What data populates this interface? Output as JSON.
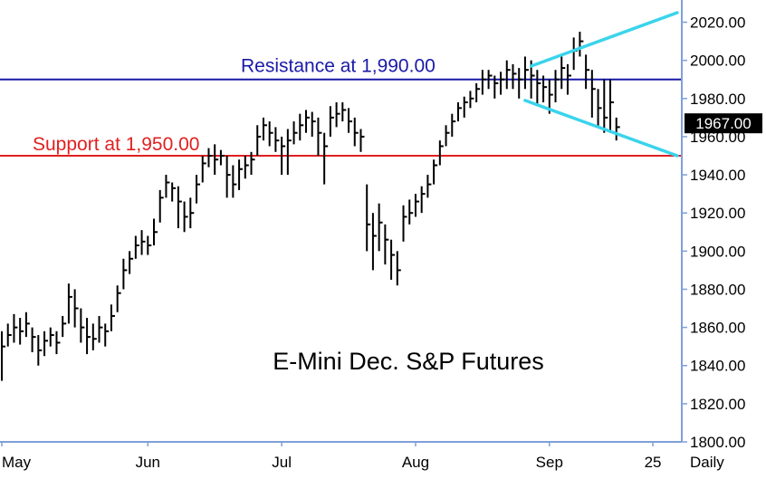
{
  "chart_data": {
    "type": "ohlc",
    "title": "E-Mini Dec. S&P Futures",
    "frequency_label": "Daily",
    "last_price_label": "1967.00",
    "ylim": [
      1800,
      2025
    ],
    "y_ticks": [
      "2020.00",
      "2000.00",
      "1980.00",
      "1960.00",
      "1940.00",
      "1920.00",
      "1900.00",
      "1880.00",
      "1860.00",
      "1840.00",
      "1820.00",
      "1800.00"
    ],
    "x_ticks": [
      {
        "label": "May",
        "bar": 0
      },
      {
        "label": "Jun",
        "bar": 24
      },
      {
        "label": "Jul",
        "bar": 46
      },
      {
        "label": "Aug",
        "bar": 68
      },
      {
        "label": "Sep",
        "bar": 90
      },
      {
        "label": "25",
        "bar": 107
      }
    ],
    "annotations": [
      {
        "label": "Resistance at 1,990.00",
        "value": 1990,
        "color": "#1a1aa8"
      },
      {
        "label": "Support at 1,950.00",
        "value": 1950,
        "color": "#e02020"
      }
    ],
    "trendlines": [
      {
        "from": [
          87,
          1997
        ],
        "to": [
          111,
          2025
        ],
        "color": "#3ad4ec"
      },
      {
        "from": [
          86,
          1979
        ],
        "to": [
          111,
          1950
        ],
        "color": "#3ad4ec"
      }
    ],
    "bars": [
      [
        1850,
        1832,
        1858
      ],
      [
        1856,
        1850,
        1862
      ],
      [
        1860,
        1852,
        1867
      ],
      [
        1858,
        1851,
        1865
      ],
      [
        1862,
        1855,
        1868
      ],
      [
        1855,
        1847,
        1860
      ],
      [
        1848,
        1840,
        1856
      ],
      [
        1853,
        1845,
        1858
      ],
      [
        1856,
        1850,
        1860
      ],
      [
        1852,
        1846,
        1858
      ],
      [
        1862,
        1855,
        1866
      ],
      [
        1876,
        1862,
        1883
      ],
      [
        1870,
        1860,
        1880
      ],
      [
        1860,
        1852,
        1870
      ],
      [
        1855,
        1846,
        1865
      ],
      [
        1854,
        1848,
        1862
      ],
      [
        1860,
        1852,
        1866
      ],
      [
        1858,
        1850,
        1862
      ],
      [
        1866,
        1858,
        1872
      ],
      [
        1878,
        1868,
        1882
      ],
      [
        1890,
        1880,
        1896
      ],
      [
        1896,
        1888,
        1900
      ],
      [
        1903,
        1896,
        1908
      ],
      [
        1905,
        1898,
        1911
      ],
      [
        1903,
        1898,
        1908
      ],
      [
        1910,
        1903,
        1917
      ],
      [
        1928,
        1915,
        1932
      ],
      [
        1936,
        1928,
        1940
      ],
      [
        1933,
        1926,
        1936
      ],
      [
        1926,
        1912,
        1934
      ],
      [
        1918,
        1910,
        1926
      ],
      [
        1920,
        1912,
        1928
      ],
      [
        1935,
        1925,
        1940
      ],
      [
        1946,
        1936,
        1950
      ],
      [
        1950,
        1944,
        1954
      ],
      [
        1948,
        1940,
        1956
      ],
      [
        1950,
        1945,
        1953
      ],
      [
        1940,
        1928,
        1950
      ],
      [
        1935,
        1928,
        1945
      ],
      [
        1943,
        1932,
        1948
      ],
      [
        1945,
        1938,
        1950
      ],
      [
        1948,
        1940,
        1952
      ],
      [
        1960,
        1950,
        1966
      ],
      [
        1966,
        1958,
        1970
      ],
      [
        1962,
        1955,
        1968
      ],
      [
        1958,
        1952,
        1965
      ],
      [
        1955,
        1940,
        1960
      ],
      [
        1958,
        1940,
        1964
      ],
      [
        1962,
        1956,
        1968
      ],
      [
        1966,
        1958,
        1972
      ],
      [
        1970,
        1962,
        1974
      ],
      [
        1968,
        1960,
        1973
      ],
      [
        1962,
        1950,
        1970
      ],
      [
        1955,
        1935,
        1962
      ],
      [
        1970,
        1960,
        1976
      ],
      [
        1972,
        1965,
        1978
      ],
      [
        1974,
        1968,
        1978
      ],
      [
        1968,
        1962,
        1975
      ],
      [
        1962,
        1955,
        1970
      ],
      [
        1960,
        1952,
        1964
      ],
      [
        1914,
        1900,
        1935
      ],
      [
        1908,
        1890,
        1920
      ],
      [
        1915,
        1900,
        1925
      ],
      [
        1906,
        1893,
        1914
      ],
      [
        1898,
        1885,
        1906
      ],
      [
        1890,
        1882,
        1900
      ],
      [
        1918,
        1905,
        1924
      ],
      [
        1920,
        1914,
        1927
      ],
      [
        1926,
        1918,
        1930
      ],
      [
        1930,
        1920,
        1934
      ],
      [
        1935,
        1928,
        1940
      ],
      [
        1945,
        1935,
        1948
      ],
      [
        1955,
        1945,
        1958
      ],
      [
        1962,
        1955,
        1966
      ],
      [
        1968,
        1960,
        1972
      ],
      [
        1975,
        1968,
        1978
      ],
      [
        1978,
        1970,
        1981
      ],
      [
        1980,
        1975,
        1984
      ],
      [
        1985,
        1978,
        1988
      ],
      [
        1990,
        1982,
        1995
      ],
      [
        1992,
        1985,
        1995
      ],
      [
        1988,
        1980,
        1992
      ],
      [
        1990,
        1982,
        1994
      ],
      [
        1995,
        1985,
        2000
      ],
      [
        1993,
        1985,
        1998
      ],
      [
        1990,
        1980,
        1996
      ],
      [
        1995,
        1985,
        2002
      ],
      [
        1992,
        1980,
        2000
      ],
      [
        1988,
        1976,
        1995
      ],
      [
        1986,
        1978,
        1992
      ],
      [
        1982,
        1972,
        1990
      ],
      [
        1990,
        1978,
        1995
      ],
      [
        1996,
        1985,
        2002
      ],
      [
        1992,
        1982,
        1998
      ],
      [
        2005,
        1995,
        2012
      ],
      [
        2010,
        2002,
        2015
      ],
      [
        1995,
        1985,
        2003
      ],
      [
        1985,
        1970,
        1995
      ],
      [
        1975,
        1965,
        1985
      ],
      [
        1970,
        1962,
        1990
      ],
      [
        1978,
        1962,
        1990
      ],
      [
        1965,
        1958,
        1970
      ]
    ]
  }
}
